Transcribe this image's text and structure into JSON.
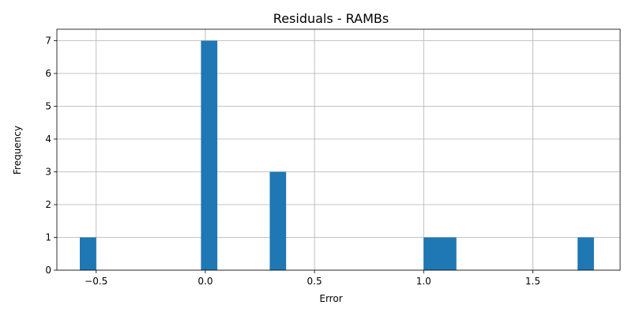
{
  "chart_data": {
    "type": "bar",
    "title": "Residuals - RAMBs",
    "xlabel": "Error",
    "ylabel": "Frequency",
    "xlim": [
      -0.68,
      1.9
    ],
    "ylim": [
      0,
      7.35
    ],
    "xticks": [
      -0.5,
      0.0,
      0.5,
      1.0,
      1.5
    ],
    "xtick_labels": [
      "−0.5",
      "0.0",
      "0.5",
      "1.0",
      "1.5"
    ],
    "yticks": [
      0,
      1,
      2,
      3,
      4,
      5,
      6,
      7
    ],
    "ytick_labels": [
      "0",
      "1",
      "2",
      "3",
      "4",
      "5",
      "6",
      "7"
    ],
    "grid": true,
    "color": "#1f77b4",
    "bins": [
      {
        "x0": -0.575,
        "x1": -0.5,
        "count": 1
      },
      {
        "x0": -0.02,
        "x1": 0.055,
        "count": 7
      },
      {
        "x0": 0.295,
        "x1": 0.37,
        "count": 3
      },
      {
        "x0": 1.0,
        "x1": 1.075,
        "count": 1
      },
      {
        "x0": 1.075,
        "x1": 1.15,
        "count": 1
      },
      {
        "x0": 1.705,
        "x1": 1.78,
        "count": 1
      }
    ]
  }
}
